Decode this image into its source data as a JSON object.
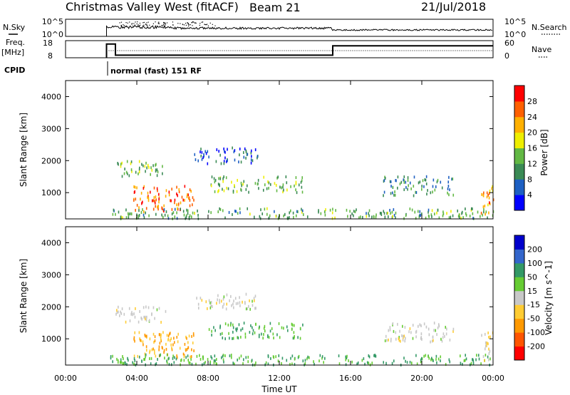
{
  "header": {
    "station": "Christmas Valley West (fitACF)",
    "beam": "Beam 21",
    "date": "21/Jul/2018"
  },
  "top_panels": {
    "nsky": {
      "label": "N.Sky",
      "ticks": [
        "10^5",
        "10^0"
      ]
    },
    "freq": {
      "label_line1": "Freq.",
      "label_line2": "[MHz]",
      "ticks": [
        "18",
        "8"
      ]
    },
    "nsearch": {
      "label": "N.Search",
      "ticks": [
        "10^5",
        "10^0"
      ]
    },
    "nave": {
      "label": "Nave",
      "ticks": [
        "60",
        "0"
      ]
    },
    "cpid": {
      "label": "CPID",
      "value": "normal (fast) 151 RF"
    }
  },
  "power_panel": {
    "ylabel": "Slant Range [km]",
    "yticks": [
      "4000",
      "3000",
      "2000",
      "1000"
    ],
    "colorbar_label": "Power [dB]",
    "colorbar_ticks": [
      "28",
      "24",
      "20",
      "16",
      "12",
      "8",
      "4"
    ],
    "colorbar_colors": [
      "#0000ff",
      "#1d5fc2",
      "#3a8a55",
      "#62b844",
      "#eeee00",
      "#ffb000",
      "#ff6000",
      "#ff0000"
    ]
  },
  "velocity_panel": {
    "ylabel": "Slant Range [km]",
    "yticks": [
      "4000",
      "3000",
      "2000",
      "1000"
    ],
    "colorbar_label": "Velocity [m s^-1]",
    "colorbar_ticks": [
      "200",
      "100",
      "50",
      "15",
      "-15",
      "-50",
      "-100",
      "-200"
    ],
    "colorbar_colors": [
      "#ff0000",
      "#ff5500",
      "#ff9900",
      "#ffcc33",
      "#c8c8c8",
      "#66cc33",
      "#339966",
      "#3366cc",
      "#0000cc"
    ]
  },
  "xaxis": {
    "label": "Time UT",
    "ticks": [
      "00:00",
      "04:00",
      "08:00",
      "12:00",
      "16:00",
      "20:00",
      "00:00"
    ]
  },
  "chart_data": {
    "type": "heatmap",
    "x_range_hours": [
      0,
      24
    ],
    "y_range_km": [
      180,
      4500
    ],
    "echo_regions": [
      {
        "t": [
          3.8,
          7.2
        ],
        "r": [
          400,
          1200
        ],
        "power_db": 26,
        "velocity": -50
      },
      {
        "t": [
          2.8,
          5.6
        ],
        "r": [
          1500,
          2000
        ],
        "power_db": 14,
        "velocity": 0
      },
      {
        "t": [
          7.2,
          10.8
        ],
        "r": [
          1900,
          2400
        ],
        "power_db": 6,
        "velocity": 0
      },
      {
        "t": [
          8.0,
          13.3
        ],
        "r": [
          1000,
          1500
        ],
        "power_db": 13,
        "velocity": 50
      },
      {
        "t": [
          17.8,
          21.8
        ],
        "r": [
          900,
          1500
        ],
        "power_db": 10,
        "velocity": 0
      },
      {
        "t": [
          2.5,
          24.0
        ],
        "r": [
          180,
          500
        ],
        "power_db": 12,
        "velocity": 50
      },
      {
        "t": [
          23.3,
          24.0
        ],
        "r": [
          300,
          1200
        ],
        "power_db": 24,
        "velocity": -15
      }
    ],
    "frequency_mhz": [
      {
        "t": [
          2.3,
          2.8
        ],
        "f": 16.0
      },
      {
        "t": [
          2.8,
          15.0
        ],
        "f": 9.5
      },
      {
        "t": [
          15.0,
          24.0
        ],
        "f": 15.0
      }
    ]
  }
}
